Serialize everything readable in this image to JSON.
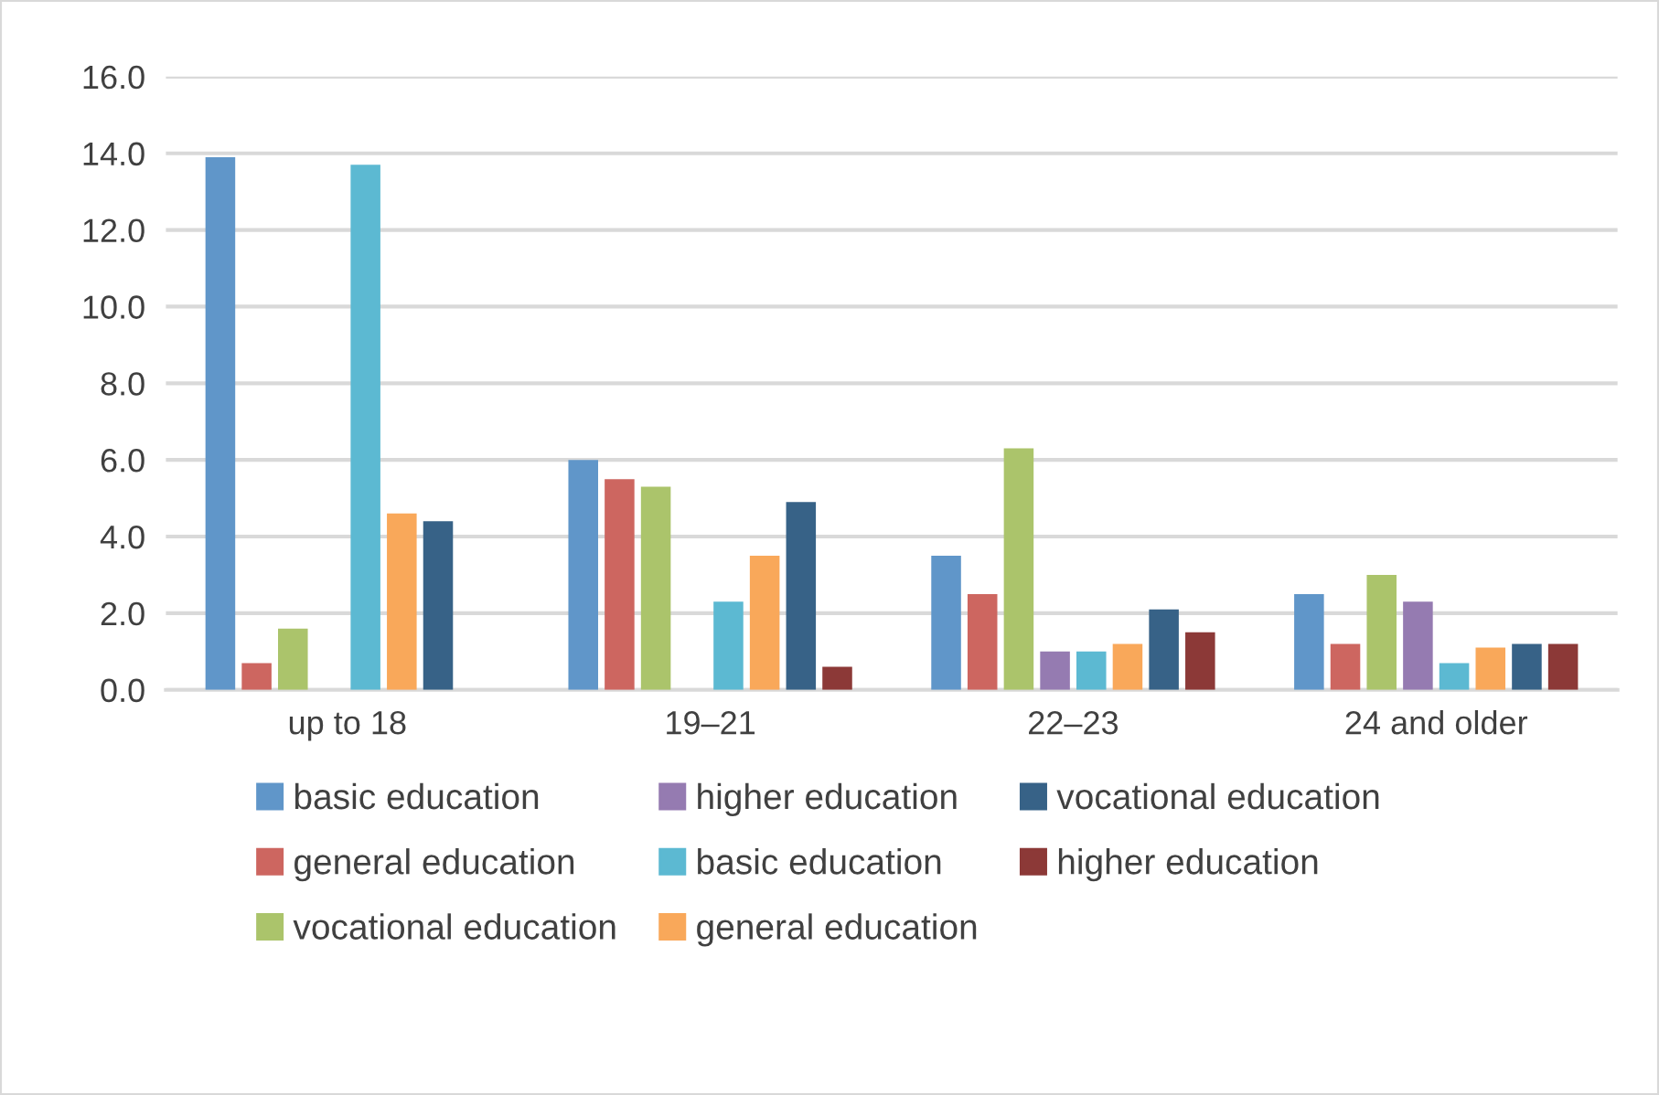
{
  "chart_data": {
    "type": "bar",
    "categories": [
      "up to 18",
      "19–21",
      "22–23",
      "24 and older"
    ],
    "series": [
      {
        "name": "basic education",
        "color": "#6096c9",
        "values": [
          13.9,
          6.0,
          3.5,
          2.5
        ]
      },
      {
        "name": "general education",
        "color": "#cd6660",
        "values": [
          0.7,
          5.5,
          2.5,
          1.2
        ]
      },
      {
        "name": "vocational education",
        "color": "#abc46b",
        "values": [
          1.6,
          5.3,
          6.3,
          3.0
        ]
      },
      {
        "name": "higher education",
        "color": "#957bb1",
        "values": [
          null,
          null,
          1.0,
          2.3
        ]
      },
      {
        "name": "basic education",
        "color": "#5cb9d2",
        "values": [
          13.7,
          2.3,
          1.0,
          0.7
        ]
      },
      {
        "name": "general education",
        "color": "#f9a85a",
        "values": [
          4.6,
          3.5,
          1.2,
          1.1
        ]
      },
      {
        "name": "vocational education",
        "color": "#376287",
        "values": [
          4.4,
          4.9,
          2.1,
          1.2
        ]
      },
      {
        "name": "higher education",
        "color": "#8c3937",
        "values": [
          null,
          0.6,
          1.5,
          1.2
        ]
      }
    ],
    "ylim": [
      0,
      16
    ],
    "yticks": [
      {
        "value": 0,
        "label": "0.0"
      },
      {
        "value": 2,
        "label": "2.0"
      },
      {
        "value": 4,
        "label": "4.0"
      },
      {
        "value": 6,
        "label": "6.0"
      },
      {
        "value": 8,
        "label": "8.0"
      },
      {
        "value": 10,
        "label": "10.0"
      },
      {
        "value": 12,
        "label": "12.0"
      },
      {
        "value": 14,
        "label": "14.0"
      },
      {
        "value": 16,
        "label": "16.0"
      }
    ],
    "grid": "y",
    "legend": "bottom"
  }
}
